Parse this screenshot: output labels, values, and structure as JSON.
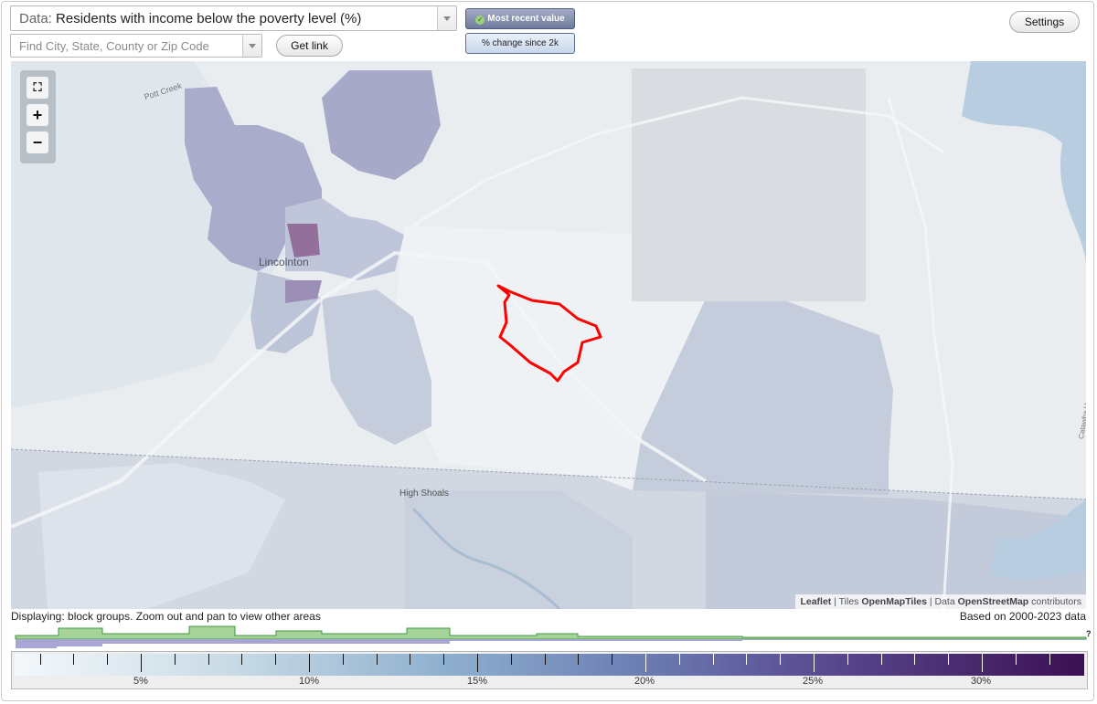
{
  "controls": {
    "data_prefix": "Data:",
    "data_value": "Residents with income below the poverty level (%)",
    "search_placeholder": "Find City, State, County or Zip Code",
    "get_link_label": "Get link",
    "settings_label": "Settings",
    "mode_recent_label": "Most recent value",
    "mode_change_label": "% change since 2k",
    "active_mode": "Most recent value"
  },
  "map": {
    "labels": {
      "city": "Lincolnton",
      "town": "High Shoals",
      "creek": "Pott Creek",
      "highway": "Catawba Hwy"
    },
    "zoom_in_label": "+",
    "zoom_out_label": "−",
    "fullscreen_icon": "fullscreen-icon",
    "highlight_color": "#ff0000",
    "attribution": {
      "leaflet": "Leaflet",
      "sep1": " | Tiles ",
      "tiles": "OpenMapTiles",
      "sep2": " | Data ",
      "osm": "OpenStreetMap",
      "contrib": " contributors"
    }
  },
  "footer": {
    "display_note": "Displaying: block groups. Zoom out and pan to view other areas",
    "based_on": "Based on 2000-2023 data",
    "unknown_mark": "?"
  },
  "legend": {
    "ticks": [
      "5%",
      "10%",
      "15%",
      "20%",
      "25%",
      "30%"
    ],
    "min_color": "#f4f8fb",
    "max_color": "#3c0f52"
  }
}
